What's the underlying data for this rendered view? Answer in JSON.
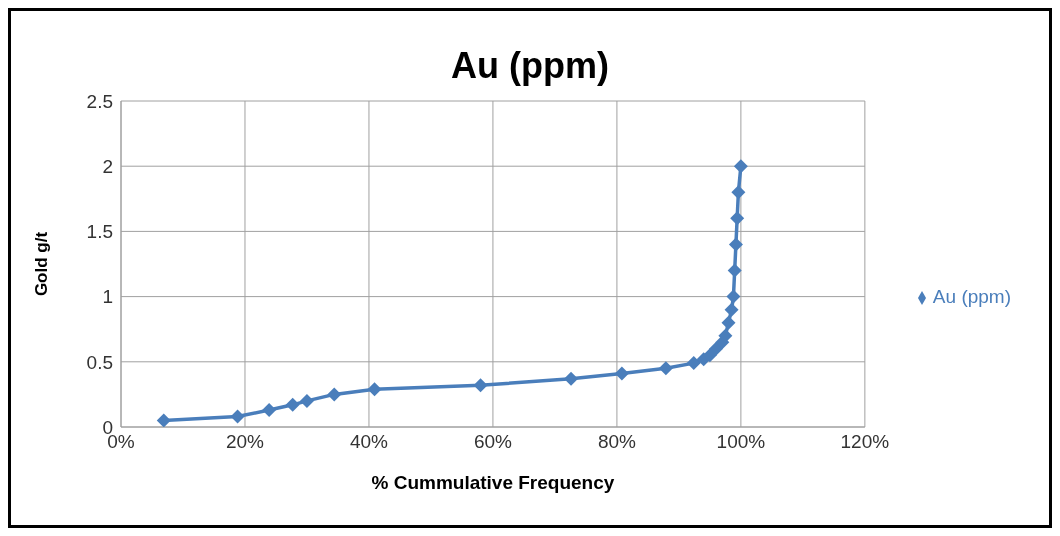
{
  "chart_data": {
    "type": "line",
    "title": "Au (ppm)",
    "xlabel": "% Cummulative Frequency",
    "ylabel": "Gold g/t",
    "x": [
      6.9,
      18.8,
      23.9,
      27.7,
      30,
      34.4,
      40.9,
      58,
      72.6,
      80.8,
      87.9,
      92.4,
      94,
      95,
      96,
      97,
      97.5,
      98,
      98.5,
      98.8,
      99,
      99.2,
      99.4,
      99.6,
      100
    ],
    "series": [
      {
        "name": "Au (ppm)",
        "color": "#4a7ebb",
        "values": [
          0.05,
          0.08,
          0.13,
          0.17,
          0.2,
          0.25,
          0.29,
          0.32,
          0.37,
          0.41,
          0.45,
          0.49,
          0.52,
          0.55,
          0.6,
          0.65,
          0.7,
          0.8,
          0.9,
          1.0,
          1.2,
          1.4,
          1.6,
          1.8,
          2.0
        ]
      }
    ],
    "xlim": [
      0,
      120
    ],
    "xticks": [
      {
        "value": 0,
        "label": "0%"
      },
      {
        "value": 20,
        "label": "20%"
      },
      {
        "value": 40,
        "label": "40%"
      },
      {
        "value": 60,
        "label": "60%"
      },
      {
        "value": 80,
        "label": "80%"
      },
      {
        "value": 100,
        "label": "100%"
      },
      {
        "value": 120,
        "label": "120%"
      }
    ],
    "ylim": [
      0,
      2.5
    ],
    "yticks": [
      0,
      0.5,
      1,
      1.5,
      2,
      2.5
    ],
    "grid": true,
    "legend": "right",
    "marker": "diamond",
    "line_style": "solid"
  }
}
